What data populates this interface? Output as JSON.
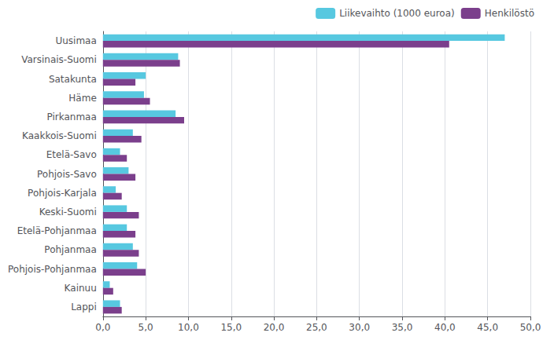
{
  "chart_data": {
    "type": "bar",
    "orientation": "horizontal",
    "categories": [
      "Uusimaa",
      "Varsinais-Suomi",
      "Satakunta",
      "Häme",
      "Pirkanmaa",
      "Kaakkois-Suomi",
      "Etelä-Savo",
      "Pohjois-Savo",
      "Pohjois-Karjala",
      "Keski-Suomi",
      "Etelä-Pohjanmaa",
      "Pohjanmaa",
      "Pohjois-Pohjanmaa",
      "Kainuu",
      "Lappi"
    ],
    "series": [
      {
        "name": "Liikevaihto (1000 euroa)",
        "color": "#57c8e0",
        "values": [
          47.0,
          8.8,
          5.0,
          4.8,
          8.5,
          3.5,
          2.0,
          3.0,
          1.5,
          2.8,
          2.8,
          3.5,
          4.0,
          0.8,
          2.0
        ]
      },
      {
        "name": "Henkilöstö",
        "color": "#7b3f8c",
        "values": [
          40.5,
          9.0,
          3.8,
          5.5,
          9.5,
          4.5,
          2.8,
          3.8,
          2.2,
          4.2,
          3.8,
          4.2,
          5.0,
          1.2,
          2.2
        ]
      }
    ],
    "xlim": [
      0,
      50
    ],
    "xticks": [
      {
        "value": 0,
        "label": "0,0"
      },
      {
        "value": 5,
        "label": "5,0"
      },
      {
        "value": 10,
        "label": "10,0"
      },
      {
        "value": 15,
        "label": "15,0"
      },
      {
        "value": 20,
        "label": "20,0"
      },
      {
        "value": 25,
        "label": "25,0"
      },
      {
        "value": 30,
        "label": "30,0"
      },
      {
        "value": 35,
        "label": "35,0"
      },
      {
        "value": 40,
        "label": "40,0"
      },
      {
        "value": 45,
        "label": "45,0"
      },
      {
        "value": 50,
        "label": "50,0"
      }
    ],
    "grid": true,
    "legend": "upper right"
  }
}
